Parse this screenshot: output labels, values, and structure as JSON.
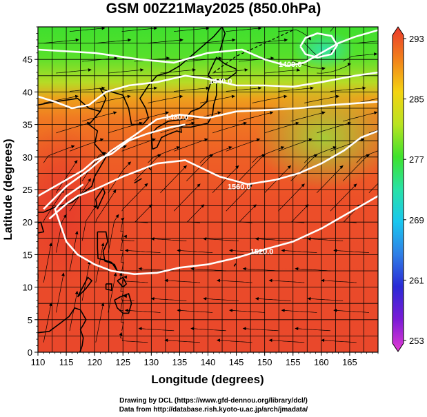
{
  "title": "GSM 00Z21May2025 (850.0hPa)",
  "x_axis": {
    "label": "Longitude (degrees)",
    "range": [
      110,
      170
    ],
    "ticks": [
      110,
      115,
      120,
      125,
      130,
      135,
      140,
      145,
      150,
      155,
      160,
      165
    ]
  },
  "y_axis": {
    "label": "Latitude  (degrees)",
    "range": [
      0,
      50
    ],
    "ticks": [
      0,
      5,
      10,
      15,
      20,
      25,
      30,
      35,
      40,
      45
    ]
  },
  "colorbar": {
    "range": [
      253,
      293
    ],
    "ticks": [
      293,
      285,
      277,
      269,
      261,
      253
    ]
  },
  "contours": [
    {
      "label": "1400.0",
      "points": [
        [
          110,
          46.5
        ],
        [
          120,
          46
        ],
        [
          128,
          45
        ],
        [
          134,
          44.5
        ],
        [
          140,
          46
        ],
        [
          146,
          46.5
        ],
        [
          150,
          45
        ],
        [
          154,
          44
        ],
        [
          157,
          44.5
        ],
        [
          160,
          46
        ],
        [
          163,
          47.5
        ],
        [
          166,
          48.5
        ],
        [
          170,
          49.5
        ]
      ],
      "label_at": [
        154.5,
        44.3
      ]
    },
    {
      "label": "1440.0",
      "points": [
        [
          110,
          39.3
        ],
        [
          113,
          38.5
        ],
        [
          116,
          37.5
        ],
        [
          119,
          38
        ],
        [
          122,
          40
        ],
        [
          126,
          41
        ],
        [
          131,
          41.5
        ],
        [
          136,
          42.5
        ],
        [
          140,
          42
        ],
        [
          145,
          41
        ],
        [
          150,
          41
        ],
        [
          155,
          40.8
        ],
        [
          160,
          41.5
        ],
        [
          166,
          42.5
        ],
        [
          170,
          43
        ]
      ],
      "label_at": [
        142.2,
        41.7
      ]
    },
    {
      "label": "1480.0",
      "points": [
        [
          111,
          22
        ],
        [
          115,
          25.5
        ],
        [
          119,
          28
        ],
        [
          123,
          31
        ],
        [
          127,
          33.3
        ],
        [
          131,
          35.8
        ],
        [
          135,
          36.5
        ],
        [
          140,
          36
        ],
        [
          145,
          37
        ],
        [
          150,
          37.2
        ],
        [
          156,
          37.5
        ],
        [
          162,
          38
        ],
        [
          170,
          38.5
        ]
      ],
      "label_at": [
        134.5,
        36.2
      ]
    },
    {
      "label": "1520.0",
      "points": [
        [
          110,
          24
        ],
        [
          114,
          26
        ],
        [
          118,
          28
        ],
        [
          120,
          29.5
        ],
        [
          123,
          30.5
        ],
        [
          126,
          32.5
        ],
        [
          129,
          33.5
        ],
        [
          133,
          34.5
        ],
        [
          136,
          35
        ]
      ],
      "label_at": null
    },
    {
      "label": "1560.0",
      "points": [
        [
          112,
          20.5
        ],
        [
          115,
          22.8
        ],
        [
          117,
          24
        ],
        [
          120,
          25
        ],
        [
          125,
          27
        ],
        [
          131,
          29
        ],
        [
          136,
          29.5
        ],
        [
          142,
          27
        ],
        [
          147,
          25.8
        ],
        [
          152,
          26.5
        ],
        [
          156,
          27.5
        ],
        [
          160,
          29
        ],
        [
          164,
          31
        ],
        [
          167,
          33
        ],
        [
          170,
          34
        ]
      ],
      "label_at": [
        145.5,
        25.5
      ]
    },
    {
      "label": "1520.0",
      "points": [
        [
          118,
          25.8
        ],
        [
          115,
          24
        ],
        [
          113,
          22
        ],
        [
          114,
          19.5
        ],
        [
          115,
          17
        ],
        [
          117,
          15
        ],
        [
          120,
          13.5
        ],
        [
          123,
          12.5
        ],
        [
          127,
          12
        ],
        [
          131,
          12.2
        ],
        [
          135,
          13
        ],
        [
          140,
          13.5
        ],
        [
          145,
          14.5
        ],
        [
          150,
          15.8
        ],
        [
          155,
          17
        ],
        [
          160,
          19
        ],
        [
          165,
          21.5
        ],
        [
          168,
          23
        ],
        [
          170,
          24
        ]
      ],
      "label_at": [
        149.5,
        15.5
      ]
    },
    {
      "label": "",
      "points": [
        [
          156.3,
          47
        ],
        [
          157.2,
          48.3
        ],
        [
          159.3,
          49
        ],
        [
          161.8,
          48.6
        ],
        [
          162.8,
          47.2
        ],
        [
          161.8,
          45.8
        ],
        [
          159.3,
          45.3
        ],
        [
          157.2,
          45.8
        ],
        [
          156.3,
          47
        ]
      ],
      "label_at": null
    }
  ],
  "credits": [
    "Drawing by DCL (https://www.gfd-dennou.org/library/dcl/)",
    "Data from http://database.rish.kyoto-u.ac.jp/arch/jmadata/"
  ]
}
